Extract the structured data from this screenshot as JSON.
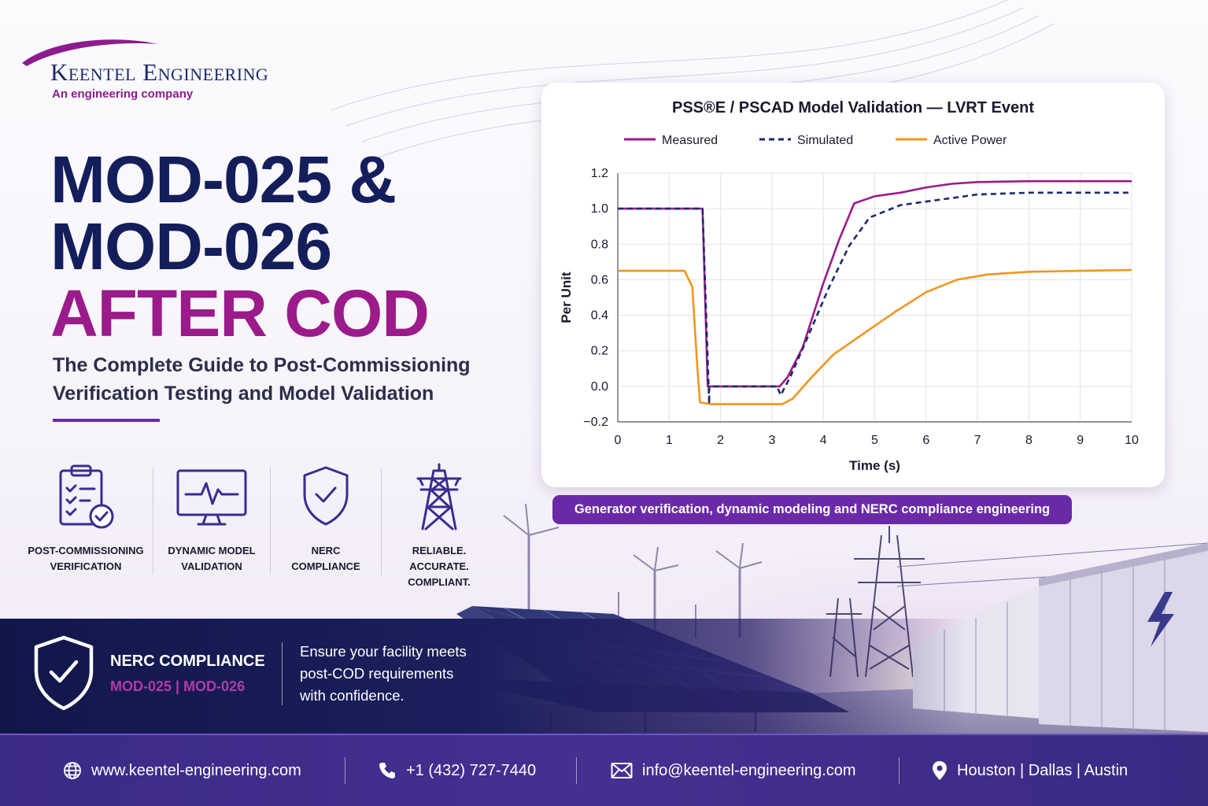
{
  "brand": {
    "name": "Keentel Engineering",
    "tagline": "An engineering company",
    "colors": {
      "navy": "#141e5b",
      "magenta": "#9b1b8a",
      "purple": "#6a2aa8"
    }
  },
  "headline": {
    "line1": "MOD-025 &",
    "line2": "MOD-026",
    "line3": "AFTER COD",
    "subtitle_line1": "The Complete Guide to Post-Commissioning",
    "subtitle_line2": "Verification Testing and Model Validation"
  },
  "features": [
    {
      "icon": "clipboard-check-icon",
      "label_line1": "POST-COMMISSIONING",
      "label_line2": "VERIFICATION",
      "label_line3": ""
    },
    {
      "icon": "monitor-pulse-icon",
      "label_line1": "DYNAMIC MODEL",
      "label_line2": "VALIDATION",
      "label_line3": ""
    },
    {
      "icon": "shield-check-icon",
      "label_line1": "NERC",
      "label_line2": "COMPLIANCE",
      "label_line3": ""
    },
    {
      "icon": "transmission-tower-icon",
      "label_line1": "RELIABLE.",
      "label_line2": "ACCURATE.",
      "label_line3": "COMPLIANT."
    }
  ],
  "chart_data": {
    "type": "line",
    "title": "PSS®E / PSCAD Model Validation — LVRT Event",
    "xlabel": "Time (s)",
    "ylabel": "Per Unit",
    "xlim": [
      0,
      10
    ],
    "ylim": [
      -0.2,
      1.2
    ],
    "xticks": [
      "0",
      "1",
      "2",
      "3",
      "4",
      "5",
      "6",
      "7",
      "8",
      "9",
      "10"
    ],
    "yticks": [
      "−0.2",
      "0.0",
      "0.2",
      "0.4",
      "0.6",
      "0.8",
      "1.0",
      "1.2"
    ],
    "grid": true,
    "legend_position": "top",
    "series": [
      {
        "name": "Measured",
        "color": "#9b1b8a",
        "style": "solid",
        "points": [
          [
            0,
            1.0
          ],
          [
            1.65,
            1.0
          ],
          [
            1.75,
            0.0
          ],
          [
            3.15,
            0.0
          ],
          [
            3.3,
            0.05
          ],
          [
            3.6,
            0.22
          ],
          [
            4.0,
            0.58
          ],
          [
            4.3,
            0.82
          ],
          [
            4.6,
            1.03
          ],
          [
            5.0,
            1.07
          ],
          [
            5.5,
            1.09
          ],
          [
            6.0,
            1.12
          ],
          [
            6.5,
            1.14
          ],
          [
            7.0,
            1.15
          ],
          [
            8.0,
            1.155
          ],
          [
            9.0,
            1.155
          ],
          [
            10.0,
            1.155
          ]
        ]
      },
      {
        "name": "Simulated",
        "color": "#1b2a6b",
        "style": "dashed",
        "points": [
          [
            0,
            1.0
          ],
          [
            1.65,
            1.0
          ],
          [
            1.78,
            -0.1
          ],
          [
            1.78,
            0.0
          ],
          [
            3.1,
            0.0
          ],
          [
            3.17,
            -0.05
          ],
          [
            3.35,
            0.05
          ],
          [
            3.7,
            0.28
          ],
          [
            4.1,
            0.55
          ],
          [
            4.5,
            0.79
          ],
          [
            4.9,
            0.95
          ],
          [
            5.5,
            1.02
          ],
          [
            6.0,
            1.04
          ],
          [
            6.5,
            1.06
          ],
          [
            7.0,
            1.08
          ],
          [
            8.0,
            1.09
          ],
          [
            9.0,
            1.09
          ],
          [
            10.0,
            1.09
          ]
        ]
      },
      {
        "name": "Active Power",
        "color": "#f0961e",
        "style": "solid",
        "points": [
          [
            0,
            0.65
          ],
          [
            1.3,
            0.65
          ],
          [
            1.45,
            0.56
          ],
          [
            1.55,
            0.1
          ],
          [
            1.6,
            -0.09
          ],
          [
            1.8,
            -0.1
          ],
          [
            3.2,
            -0.1
          ],
          [
            3.4,
            -0.07
          ],
          [
            3.8,
            0.06
          ],
          [
            4.2,
            0.18
          ],
          [
            4.8,
            0.3
          ],
          [
            5.4,
            0.42
          ],
          [
            6.0,
            0.53
          ],
          [
            6.6,
            0.6
          ],
          [
            7.2,
            0.63
          ],
          [
            8.0,
            0.645
          ],
          [
            9.0,
            0.65
          ],
          [
            10.0,
            0.655
          ]
        ]
      }
    ]
  },
  "caption": "Generator verification, dynamic modeling and NERC compliance engineering",
  "compliance": {
    "title": "NERC COMPLIANCE",
    "standards": "MOD-025 | MOD-026",
    "message_line1": "Ensure your facility meets",
    "message_line2": "post-COD requirements",
    "message_line3": "with confidence."
  },
  "footer": {
    "website": "www.keentel-engineering.com",
    "phone": "+1 (432) 727-7440",
    "email": "info@keentel-engineering.com",
    "locations": "Houston | Dallas | Austin"
  }
}
